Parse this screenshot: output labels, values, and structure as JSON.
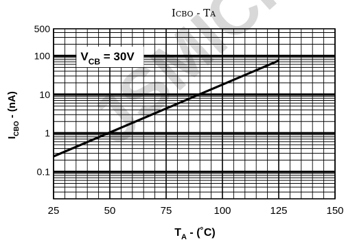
{
  "chart_data": {
    "type": "line",
    "title": {
      "main": "I",
      "sub": "CBO",
      "sep": " - ",
      "x_main": "T",
      "x_sub": "A"
    },
    "xlabel": {
      "main": "T",
      "sub": "A",
      "suffix": " - (˚C)"
    },
    "ylabel": {
      "main": "I",
      "sub": "CBO",
      "suffix": " - (nA)"
    },
    "x_ticks": [
      25,
      50,
      75,
      100,
      125,
      150
    ],
    "y_ticks": [
      {
        "value": 0.1,
        "label": "0.1"
      },
      {
        "value": 1,
        "label": "1"
      },
      {
        "value": 10,
        "label": "10"
      },
      {
        "value": 100,
        "label": "100"
      },
      {
        "value": 500,
        "label": "500"
      }
    ],
    "xlim": [
      25,
      150
    ],
    "ylim": [
      0.02,
      500
    ],
    "y_scale": "log",
    "grid": true,
    "annotation": {
      "main": "V",
      "sub": "CB",
      "suffix": " = 30V",
      "value_x": 37,
      "value_y": 90
    },
    "series": [
      {
        "x": [
          25,
          125
        ],
        "y": [
          0.25,
          75
        ]
      }
    ],
    "colors": {
      "line": "#000000",
      "grid": "#000000",
      "watermark": "#d8d8d8"
    }
  },
  "watermark": "JSMICRO"
}
